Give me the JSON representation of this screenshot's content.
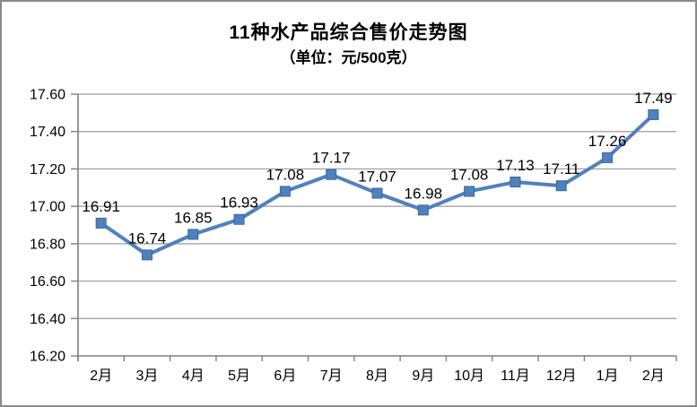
{
  "chart_data": {
    "type": "line",
    "title": "11种水产品综合售价走势图",
    "subtitle": "（单位：元/500克）",
    "categories": [
      "2月",
      "3月",
      "4月",
      "5月",
      "6月",
      "7月",
      "8月",
      "9月",
      "10月",
      "11月",
      "12月",
      "1月",
      "2月"
    ],
    "series": [
      {
        "name": "11种水产品综合售价",
        "values": [
          16.91,
          16.74,
          16.85,
          16.93,
          17.08,
          17.17,
          17.07,
          16.98,
          17.08,
          17.13,
          17.11,
          17.26,
          17.49
        ]
      }
    ],
    "data_labels": [
      "16.91",
      "16.74",
      "16.85",
      "16.93",
      "17.08",
      "17.17",
      "17.07",
      "16.98",
      "17.08",
      "17.13",
      "17.11",
      "17.26",
      "17.49"
    ],
    "xlabel": "",
    "ylabel": "",
    "ylim": [
      16.2,
      17.6
    ],
    "ytick_step": 0.2,
    "ytick_labels": [
      "16.20",
      "16.40",
      "16.60",
      "16.80",
      "17.00",
      "17.20",
      "17.40",
      "17.60"
    ],
    "grid": true,
    "legend_position": "none",
    "colors": {
      "line": "#4F81BD",
      "marker_fill": "#4F81BD",
      "marker_stroke": "#3A679C",
      "gridline": "#9B9B9B",
      "axis": "#7F7F7F",
      "text": "#000000",
      "frame_border": "#898989",
      "background": "#FFFFFF"
    },
    "marker_shape": "square"
  }
}
